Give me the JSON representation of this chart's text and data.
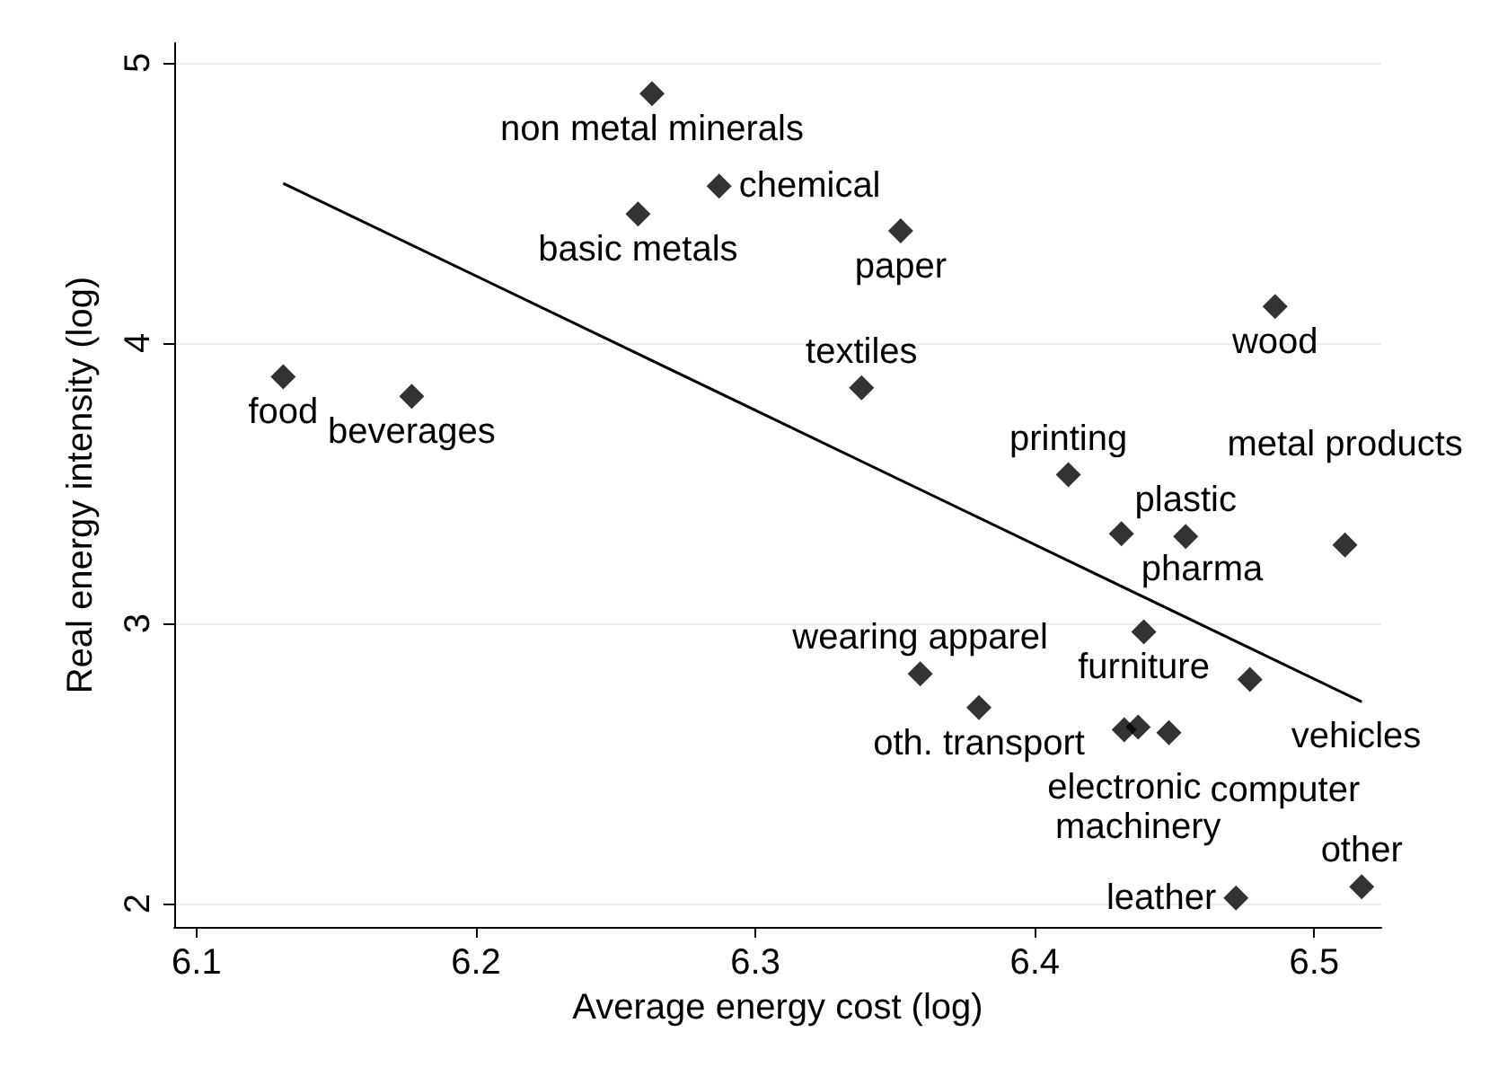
{
  "chart_data": {
    "type": "scatter",
    "xlabel": "Average energy cost (log)",
    "ylabel": "Real energy intensity (log)",
    "xlim": [
      6.092,
      6.524
    ],
    "ylim": [
      1.917,
      5.07
    ],
    "xticks": [
      6.1,
      6.2,
      6.3,
      6.4,
      6.5
    ],
    "yticks": [
      2,
      3,
      4,
      5
    ],
    "grid": "y",
    "marker": "diamond",
    "series": [
      {
        "color": "#000000",
        "x": [
          6.263,
          6.287,
          6.258,
          6.352,
          6.486,
          6.131,
          6.177,
          6.338,
          6.412,
          6.431,
          6.454,
          6.511,
          6.439,
          6.477,
          6.359,
          6.38,
          6.432,
          6.437,
          6.448,
          6.472,
          6.517
        ],
        "values": [
          4.89,
          4.56,
          4.46,
          4.4,
          4.13,
          3.88,
          3.81,
          3.84,
          3.53,
          3.32,
          3.31,
          3.28,
          2.97,
          2.8,
          2.82,
          2.7,
          2.62,
          2.63,
          2.61,
          2.02,
          2.06
        ]
      },
      {
        "type": "line",
        "color": "#000000",
        "marker": "none",
        "x": [
          6.131,
          6.517
        ],
        "values": [
          4.57,
          2.72
        ]
      }
    ],
    "annotations": [
      {
        "text": "non metal minerals",
        "x": 6.263,
        "y": 4.89
      },
      {
        "text": "chemical",
        "x": 6.287,
        "y": 4.56
      },
      {
        "text": "basic metals",
        "x": 6.258,
        "y": 4.46
      },
      {
        "text": "paper",
        "x": 6.352,
        "y": 4.4
      },
      {
        "text": "wood",
        "x": 6.486,
        "y": 4.13
      },
      {
        "text": "food",
        "x": 6.131,
        "y": 3.88
      },
      {
        "text": "beverages",
        "x": 6.177,
        "y": 3.81
      },
      {
        "text": "textiles",
        "x": 6.338,
        "y": 3.84
      },
      {
        "text": "printing",
        "x": 6.412,
        "y": 3.53
      },
      {
        "text": "pharma",
        "x": 6.431,
        "y": 3.32
      },
      {
        "text": "plastic",
        "x": 6.454,
        "y": 3.31
      },
      {
        "text": "metal products",
        "x": 6.511,
        "y": 3.28
      },
      {
        "text": "furniture",
        "x": 6.439,
        "y": 2.97
      },
      {
        "text": "vehicles",
        "x": 6.477,
        "y": 2.8
      },
      {
        "text": "wearing apparel",
        "x": 6.359,
        "y": 2.82
      },
      {
        "text": "oth. transport",
        "x": 6.38,
        "y": 2.7
      },
      {
        "text": "electronic",
        "x": 6.432,
        "y": 2.62
      },
      {
        "text": "machinery",
        "x": 6.437,
        "y": 2.63
      },
      {
        "text": "computer",
        "x": 6.448,
        "y": 2.61
      },
      {
        "text": "leather",
        "x": 6.472,
        "y": 2.02
      },
      {
        "text": "other",
        "x": 6.517,
        "y": 2.06
      }
    ]
  }
}
